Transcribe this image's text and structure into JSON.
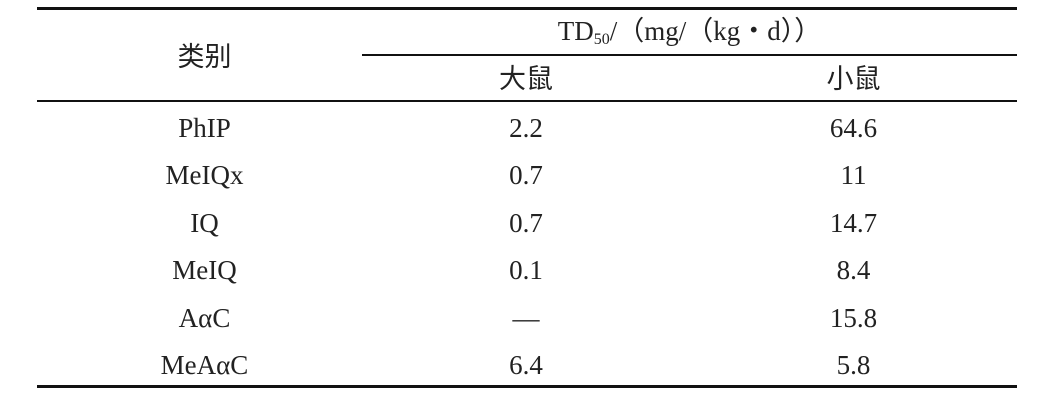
{
  "table": {
    "header": {
      "category": "类别",
      "group": {
        "main": "TD",
        "sub": "50",
        "unit": "/（mg/（kg・d））"
      },
      "columns": [
        "大鼠",
        "小鼠"
      ]
    },
    "rows": [
      [
        "PhIP",
        "2.2",
        "64.6"
      ],
      [
        "MeIQx",
        "0.7",
        "11"
      ],
      [
        "IQ",
        "0.7",
        "14.7"
      ],
      [
        "MeIQ",
        "0.1",
        "8.4"
      ],
      [
        "AαC",
        "—",
        "15.8"
      ],
      [
        "MeAαC",
        "6.4",
        "5.8"
      ]
    ]
  }
}
